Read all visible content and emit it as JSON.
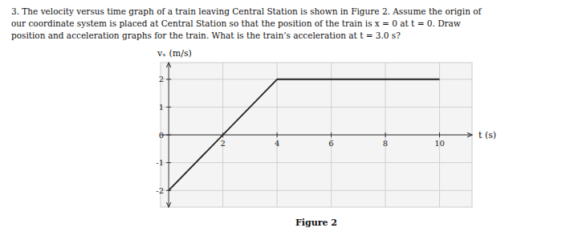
{
  "chart_data": {
    "type": "line",
    "title": "Figure 2",
    "annotations": [
      "3.  The velocity versus time graph of a train leaving Central Station is shown in Figure 2.  Assume the origin of",
      "our coordinate system is placed at Central Station so that the position of the train is x = 0 at t = 0.  Draw",
      "position and acceleration graphs for the train.  What is the train’s acceleration at t = 3.0 s?"
    ],
    "y_label": "vₓ (m/s)",
    "x_label": "t (s)",
    "x": [
      0,
      4,
      10
    ],
    "values": [
      -2,
      2,
      2
    ],
    "color": "#222222",
    "xlim": [
      -0.3,
      11.2
    ],
    "ylim": [
      -2.6,
      2.6
    ],
    "xticks": [
      2,
      4,
      6,
      8,
      10
    ],
    "yticks": [
      -2,
      -1,
      0,
      1,
      2
    ],
    "grid": true
  }
}
